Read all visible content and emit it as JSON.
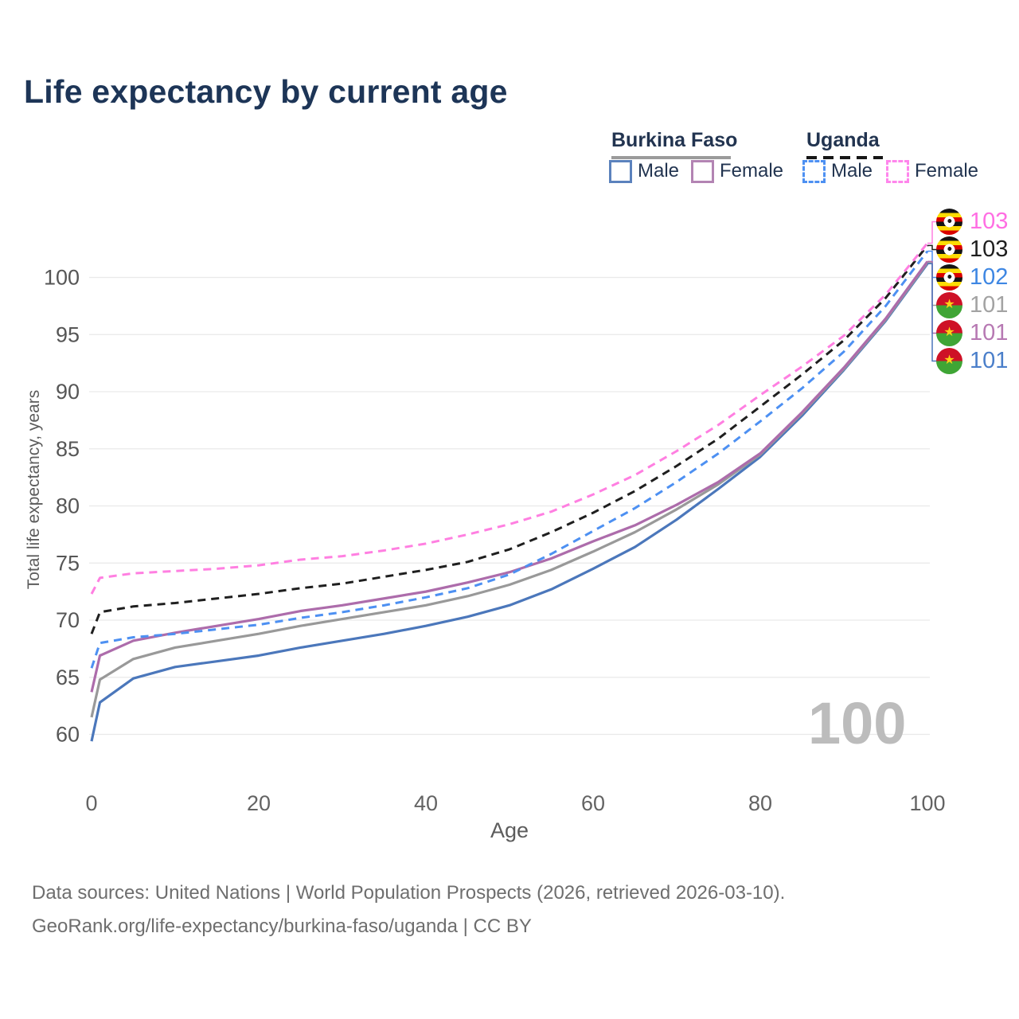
{
  "title": "Life expectancy by current age",
  "legend": {
    "burkina_faso": {
      "name": "Burkina Faso",
      "line_style": "solid",
      "male_label": "Male",
      "female_label": "Female",
      "male_color": "#5b82bd",
      "female_color": "#b384b3"
    },
    "uganda": {
      "name": "Uganda",
      "line_style": "dashed",
      "male_label": "Male",
      "female_label": "Female",
      "male_color": "#4d90f2",
      "female_color": "#ff86ec"
    }
  },
  "chart_data": {
    "type": "line",
    "title": "Life expectancy by current age",
    "xlabel": "Age",
    "ylabel": "Total life expectancy, years",
    "x_ticks": [
      0,
      20,
      40,
      60,
      80,
      100
    ],
    "y_ticks": [
      60,
      65,
      70,
      75,
      80,
      85,
      90,
      95,
      100
    ],
    "xlim": [
      0,
      100
    ],
    "ylim": [
      58.5,
      104
    ],
    "grid": "horizontal",
    "legend_position": "top-right",
    "watermark": "100",
    "x": [
      0,
      1,
      5,
      10,
      15,
      20,
      25,
      30,
      35,
      40,
      45,
      50,
      55,
      60,
      65,
      70,
      75,
      80,
      85,
      90,
      95,
      100
    ],
    "series": [
      {
        "id": "uganda-female",
        "name": "Uganda Female",
        "country": "Uganda",
        "sex": "Female",
        "color": "#ff7fe1",
        "dash": true,
        "flag": "uganda",
        "end_label": "103",
        "end_label_color": "#ff6ee3",
        "values": [
          72.3,
          73.7,
          74.1,
          74.3,
          74.5,
          74.8,
          75.3,
          75.6,
          76.1,
          76.7,
          77.5,
          78.4,
          79.5,
          81.0,
          82.7,
          84.8,
          87.1,
          89.7,
          92.2,
          94.9,
          98.5,
          103.0
        ]
      },
      {
        "id": "uganda-both",
        "name": "Uganda (both sexes)",
        "country": "Uganda",
        "sex": "Both",
        "color": "#1f1f1f",
        "dash": true,
        "flag": "uganda",
        "end_label": "103",
        "end_label_color": "#1f1f1f",
        "values": [
          68.8,
          70.7,
          71.2,
          71.5,
          71.9,
          72.3,
          72.8,
          73.2,
          73.8,
          74.4,
          75.1,
          76.2,
          77.7,
          79.4,
          81.3,
          83.5,
          85.9,
          88.7,
          91.5,
          94.5,
          98.2,
          102.8
        ]
      },
      {
        "id": "uganda-male",
        "name": "Uganda Male",
        "country": "Uganda",
        "sex": "Male",
        "color": "#4d90f2",
        "dash": true,
        "flag": "uganda",
        "end_label": "102",
        "end_label_color": "#3e87e3",
        "values": [
          65.8,
          68.0,
          68.5,
          68.8,
          69.2,
          69.6,
          70.2,
          70.7,
          71.3,
          72.0,
          72.8,
          74.0,
          75.8,
          77.8,
          79.8,
          82.1,
          84.6,
          87.4,
          90.3,
          93.5,
          97.5,
          102.3
        ]
      },
      {
        "id": "burkina-both",
        "name": "Burkina Faso (both sexes)",
        "country": "Burkina Faso",
        "sex": "Both",
        "color": "#999999",
        "dash": false,
        "flag": "burkina",
        "end_label": "101",
        "end_label_color": "#a3a3a3",
        "values": [
          61.5,
          64.8,
          66.6,
          67.6,
          68.2,
          68.8,
          69.5,
          70.1,
          70.7,
          71.3,
          72.1,
          73.1,
          74.4,
          76.0,
          77.7,
          79.7,
          81.9,
          84.5,
          88.1,
          92.0,
          96.3,
          101.3
        ]
      },
      {
        "id": "burkina-female",
        "name": "Burkina Faso Female",
        "country": "Burkina Faso",
        "sex": "Female",
        "color": "#ad6cab",
        "dash": false,
        "flag": "burkina",
        "end_label": "101",
        "end_label_color": "#b779b3",
        "values": [
          63.7,
          66.9,
          68.2,
          68.9,
          69.5,
          70.1,
          70.8,
          71.3,
          71.9,
          72.5,
          73.3,
          74.2,
          75.4,
          76.9,
          78.3,
          80.1,
          82.1,
          84.6,
          88.2,
          92.1,
          96.4,
          101.4
        ]
      },
      {
        "id": "burkina-male",
        "name": "Burkina Faso Male",
        "country": "Burkina Faso",
        "sex": "Male",
        "color": "#4b77bb",
        "dash": false,
        "flag": "burkina",
        "end_label": "101",
        "end_label_color": "#4b7fca",
        "values": [
          59.4,
          62.8,
          64.9,
          65.9,
          66.4,
          66.9,
          67.6,
          68.2,
          68.8,
          69.5,
          70.3,
          71.3,
          72.7,
          74.5,
          76.4,
          78.8,
          81.5,
          84.3,
          87.9,
          91.9,
          96.2,
          101.2
        ]
      }
    ]
  },
  "footer": {
    "line1": "Data sources: United Nations | World Population Prospects (2026, retrieved 2026-03-10).",
    "line2": "GeoRank.org/life-expectancy/burkina-faso/uganda | CC BY"
  }
}
